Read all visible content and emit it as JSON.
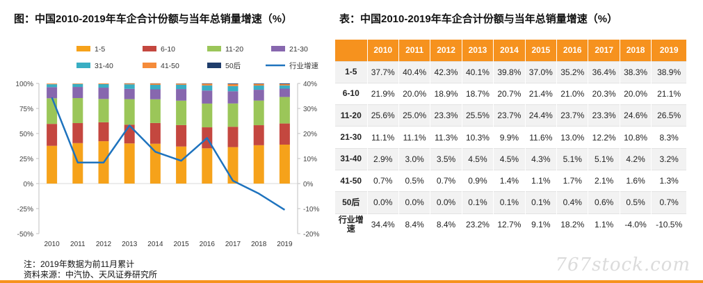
{
  "figure_title": "图：中国2010-2019年车企合计份额与当年总销量增速（%）",
  "table_title": "表：中国2010-2019年车企合计份额与当年总销量增速（%）",
  "colors": {
    "1-5": "#f6a21a",
    "6-10": "#c4473f",
    "11-20": "#9bc659",
    "21-30": "#8767ae",
    "31-40": "#39aec3",
    "41-50": "#f58b3a",
    "50后": "#1f3d6b",
    "行业增速": "#1e73be",
    "header": "#f6921e"
  },
  "chart_data": {
    "type": "bar",
    "stacked": true,
    "categories": [
      "2010",
      "2011",
      "2012",
      "2013",
      "2014",
      "2015",
      "2016",
      "2017",
      "2018",
      "2019"
    ],
    "series": [
      {
        "name": "1-5",
        "values": [
          37.7,
          40.4,
          42.3,
          40.1,
          39.8,
          37.0,
          35.2,
          36.4,
          38.3,
          38.9
        ]
      },
      {
        "name": "6-10",
        "values": [
          21.9,
          20.0,
          18.9,
          18.7,
          20.7,
          21.4,
          21.0,
          20.3,
          20.0,
          21.1
        ]
      },
      {
        "name": "11-20",
        "values": [
          25.6,
          25.0,
          23.3,
          25.5,
          23.7,
          24.4,
          23.7,
          23.3,
          24.6,
          26.5
        ]
      },
      {
        "name": "21-30",
        "values": [
          11.1,
          11.1,
          11.3,
          10.3,
          9.9,
          11.6,
          13.0,
          12.2,
          10.8,
          8.3
        ]
      },
      {
        "name": "31-40",
        "values": [
          2.9,
          3.0,
          3.5,
          4.5,
          4.5,
          4.3,
          5.1,
          5.1,
          4.2,
          3.2
        ]
      },
      {
        "name": "41-50",
        "values": [
          0.7,
          0.5,
          0.7,
          0.9,
          1.4,
          1.1,
          1.7,
          2.1,
          1.6,
          1.3
        ]
      },
      {
        "name": "50后",
        "values": [
          0.0,
          0.0,
          0.0,
          0.1,
          0.1,
          0.1,
          0.4,
          0.6,
          0.5,
          0.7
        ]
      }
    ],
    "line": {
      "name": "行业增速",
      "axis": "right",
      "values": [
        34.4,
        8.4,
        8.4,
        23.2,
        12.7,
        9.1,
        18.2,
        1.1,
        -4.0,
        -10.5
      ]
    },
    "yleft": {
      "ylim": [
        -50,
        100
      ],
      "ticks": [
        "-50%",
        "-25%",
        "0%",
        "25%",
        "50%",
        "75%",
        "100%"
      ],
      "tick_values": [
        -50,
        -25,
        0,
        25,
        50,
        75,
        100
      ]
    },
    "yright": {
      "ylim": [
        -20,
        40
      ],
      "ticks": [
        "-20%",
        "-10%",
        "0%",
        "10%",
        "20%",
        "30%",
        "40%"
      ],
      "tick_values": [
        -20,
        -10,
        0,
        10,
        20,
        30,
        40
      ]
    },
    "legend_position": "top"
  },
  "table": {
    "header": [
      "2010",
      "2011",
      "2012",
      "2013",
      "2014",
      "2015",
      "2016",
      "2017",
      "2018",
      "2019"
    ],
    "rows": [
      {
        "label": "1-5",
        "cells": [
          "37.7%",
          "40.4%",
          "42.3%",
          "40.1%",
          "39.8%",
          "37.0%",
          "35.2%",
          "36.4%",
          "38.3%",
          "38.9%"
        ]
      },
      {
        "label": "6-10",
        "cells": [
          "21.9%",
          "20.0%",
          "18.9%",
          "18.7%",
          "20.7%",
          "21.4%",
          "21.0%",
          "20.3%",
          "20.0%",
          "21.1%"
        ]
      },
      {
        "label": "11-20",
        "cells": [
          "25.6%",
          "25.0%",
          "23.3%",
          "25.5%",
          "23.7%",
          "24.4%",
          "23.7%",
          "23.3%",
          "24.6%",
          "26.5%"
        ]
      },
      {
        "label": "21-30",
        "cells": [
          "11.1%",
          "11.1%",
          "11.3%",
          "10.3%",
          "9.9%",
          "11.6%",
          "13.0%",
          "12.2%",
          "10.8%",
          "8.3%"
        ]
      },
      {
        "label": "31-40",
        "cells": [
          "2.9%",
          "3.0%",
          "3.5%",
          "4.5%",
          "4.5%",
          "4.3%",
          "5.1%",
          "5.1%",
          "4.2%",
          "3.2%"
        ]
      },
      {
        "label": "41-50",
        "cells": [
          "0.7%",
          "0.5%",
          "0.7%",
          "0.9%",
          "1.4%",
          "1.1%",
          "1.7%",
          "2.1%",
          "1.6%",
          "1.3%"
        ]
      },
      {
        "label": "50后",
        "cells": [
          "0.0%",
          "0.0%",
          "0.0%",
          "0.1%",
          "0.1%",
          "0.1%",
          "0.4%",
          "0.6%",
          "0.5%",
          "0.7%"
        ]
      },
      {
        "label": "行业增速",
        "cells": [
          "34.4%",
          "8.4%",
          "8.4%",
          "23.2%",
          "12.7%",
          "9.1%",
          "18.2%",
          "1.1%",
          "-4.0%",
          "-10.5%"
        ]
      }
    ]
  },
  "notes": {
    "note": "注：2019年数据为前11月累计",
    "source": "资料来源：中汽协、天风证券研究所"
  },
  "watermark": "767stock.com"
}
